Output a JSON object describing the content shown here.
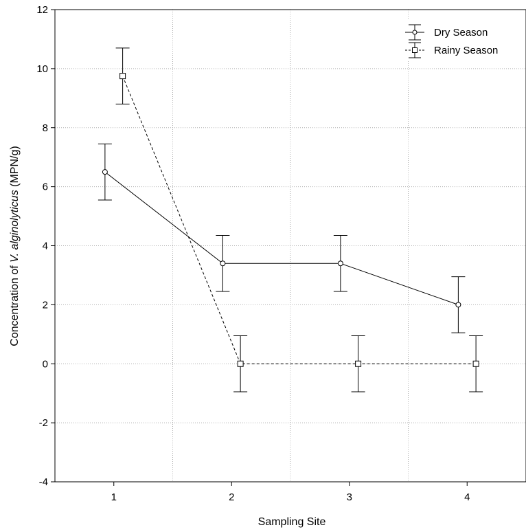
{
  "chart_data": {
    "type": "line",
    "title": "",
    "xlabel": "Sampling Site",
    "ylabel_prefix": "Concentration of ",
    "ylabel_species": "V. alginolyticus",
    "ylabel_suffix": " (MPN/g)",
    "categories": [
      "1",
      "2",
      "3",
      "4"
    ],
    "x_ticks": [
      1,
      2,
      3,
      4
    ],
    "xlim": [
      0.5,
      4.5
    ],
    "ylim": [
      -4,
      12
    ],
    "y_ticks": [
      -4,
      -2,
      0,
      2,
      4,
      6,
      8,
      10,
      12
    ],
    "grid": true,
    "legend_position": "top-right",
    "series": [
      {
        "name": "Dry Season",
        "marker": "circle",
        "line_style": "solid",
        "color": "#000000",
        "x": [
          1,
          2,
          3,
          4
        ],
        "values": [
          6.5,
          3.4,
          3.4,
          2.0
        ],
        "error_low": [
          5.55,
          2.45,
          2.45,
          1.05
        ],
        "error_high": [
          7.45,
          4.35,
          4.35,
          2.95
        ]
      },
      {
        "name": "Rainy Season",
        "marker": "square",
        "line_style": "dashed",
        "color": "#000000",
        "x": [
          1,
          2,
          3,
          4
        ],
        "values": [
          9.75,
          0.0,
          0.0,
          0.0
        ],
        "error_low": [
          8.8,
          -0.95,
          -0.95,
          -0.95
        ],
        "error_high": [
          10.7,
          0.95,
          0.95,
          0.95
        ]
      }
    ]
  }
}
